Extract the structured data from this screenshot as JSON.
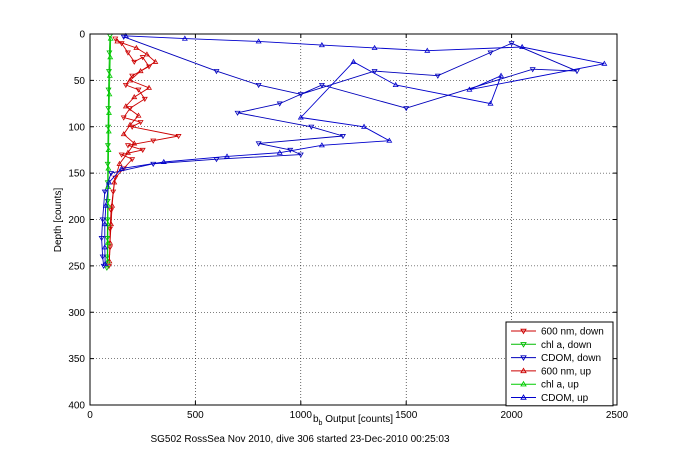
{
  "chart_data": {
    "type": "scatter",
    "xlabel_main": "b",
    "xlabel_sub": "b",
    "xlabel_rest": " Output [counts]",
    "ylabel": "Depth [counts]",
    "caption": "SG502 RossSea Nov 2010, dive 306 started 23-Dec-2010 00:25:03",
    "xlim": [
      0,
      2500
    ],
    "ylim": [
      0,
      400
    ],
    "y_reversed": true,
    "grid": true,
    "legend_position": "bottom-right",
    "xticks": [
      0,
      500,
      1000,
      1500,
      2000,
      2500
    ],
    "yticks": [
      0,
      50,
      100,
      150,
      200,
      250,
      300,
      350,
      400
    ],
    "series": [
      {
        "name": "600 nm, down",
        "color": "#cc0000",
        "marker": "triangle-down",
        "points": [
          [
            120,
            5
          ],
          [
            150,
            10
          ],
          [
            180,
            20
          ],
          [
            210,
            30
          ],
          [
            250,
            25
          ],
          [
            280,
            35
          ],
          [
            200,
            45
          ],
          [
            170,
            55
          ],
          [
            230,
            60
          ],
          [
            260,
            70
          ],
          [
            190,
            80
          ],
          [
            160,
            90
          ],
          [
            240,
            95
          ],
          [
            200,
            100
          ],
          [
            420,
            110
          ],
          [
            300,
            115
          ],
          [
            180,
            120
          ],
          [
            250,
            125
          ],
          [
            150,
            130
          ],
          [
            200,
            135
          ],
          [
            160,
            145
          ],
          [
            120,
            155
          ],
          [
            110,
            170
          ],
          [
            100,
            190
          ],
          [
            95,
            210
          ],
          [
            95,
            230
          ],
          [
            90,
            250
          ]
        ]
      },
      {
        "name": "chl a, down",
        "color": "#00bb00",
        "marker": "triangle-down",
        "points": [
          [
            95,
            2
          ],
          [
            92,
            20
          ],
          [
            90,
            40
          ],
          [
            88,
            60
          ],
          [
            87,
            80
          ],
          [
            86,
            100
          ],
          [
            85,
            120
          ],
          [
            84,
            140
          ],
          [
            84,
            160
          ],
          [
            84,
            180
          ],
          [
            83,
            200
          ],
          [
            82,
            220
          ],
          [
            82,
            240
          ],
          [
            80,
            252
          ]
        ]
      },
      {
        "name": "CDOM, down",
        "color": "#0000bb",
        "marker": "triangle-down",
        "points": [
          [
            160,
            3
          ],
          [
            600,
            40
          ],
          [
            800,
            55
          ],
          [
            1000,
            65
          ],
          [
            1350,
            40
          ],
          [
            1650,
            45
          ],
          [
            1900,
            20
          ],
          [
            2000,
            10
          ],
          [
            2310,
            40
          ],
          [
            2100,
            38
          ],
          [
            1500,
            80
          ],
          [
            1100,
            55
          ],
          [
            900,
            75
          ],
          [
            700,
            85
          ],
          [
            1050,
            100
          ],
          [
            1200,
            110
          ],
          [
            800,
            118
          ],
          [
            950,
            125
          ],
          [
            1000,
            130
          ],
          [
            600,
            135
          ],
          [
            300,
            140
          ],
          [
            100,
            150
          ],
          [
            70,
            170
          ],
          [
            60,
            200
          ],
          [
            55,
            220
          ],
          [
            60,
            240
          ],
          [
            65,
            250
          ]
        ]
      },
      {
        "name": "600 nm, up",
        "color": "#cc0000",
        "marker": "triangle-up",
        "points": [
          [
            130,
            8
          ],
          [
            220,
            15
          ],
          [
            270,
            22
          ],
          [
            310,
            30
          ],
          [
            240,
            40
          ],
          [
            190,
            50
          ],
          [
            280,
            58
          ],
          [
            210,
            68
          ],
          [
            170,
            78
          ],
          [
            230,
            88
          ],
          [
            190,
            98
          ],
          [
            160,
            108
          ],
          [
            210,
            118
          ],
          [
            180,
            128
          ],
          [
            140,
            140
          ],
          [
            115,
            160
          ],
          [
            105,
            185
          ],
          [
            100,
            205
          ],
          [
            95,
            225
          ],
          [
            92,
            245
          ]
        ]
      },
      {
        "name": "chl a, up",
        "color": "#00cc00",
        "marker": "triangle-up",
        "points": [
          [
            98,
            5
          ],
          [
            96,
            25
          ],
          [
            94,
            45
          ],
          [
            92,
            65
          ],
          [
            90,
            85
          ],
          [
            89,
            105
          ],
          [
            88,
            125
          ],
          [
            87,
            145
          ],
          [
            86,
            165
          ],
          [
            86,
            185
          ],
          [
            85,
            205
          ],
          [
            85,
            225
          ],
          [
            84,
            245
          ]
        ]
      },
      {
        "name": "CDOM, up",
        "color": "#0000cc",
        "marker": "triangle-up",
        "points": [
          [
            170,
            2
          ],
          [
            450,
            5
          ],
          [
            800,
            8
          ],
          [
            1100,
            12
          ],
          [
            1350,
            15
          ],
          [
            1600,
            18
          ],
          [
            2050,
            14
          ],
          [
            2440,
            32
          ],
          [
            1800,
            60
          ],
          [
            1950,
            45
          ],
          [
            1900,
            75
          ],
          [
            1450,
            55
          ],
          [
            1250,
            30
          ],
          [
            1000,
            90
          ],
          [
            1300,
            100
          ],
          [
            1420,
            115
          ],
          [
            1100,
            120
          ],
          [
            900,
            128
          ],
          [
            650,
            132
          ],
          [
            350,
            138
          ],
          [
            150,
            145
          ],
          [
            90,
            160
          ],
          [
            75,
            185
          ],
          [
            70,
            205
          ],
          [
            70,
            230
          ],
          [
            72,
            248
          ]
        ]
      }
    ]
  }
}
